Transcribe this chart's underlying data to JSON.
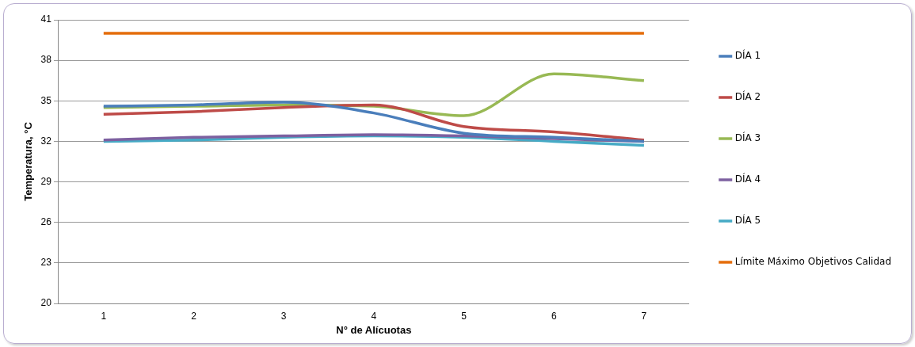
{
  "chart_data": {
    "type": "line",
    "xlabel": "N° de Alícuotas",
    "ylabel": "Temperatura, °C",
    "categories": [
      "1",
      "2",
      "3",
      "4",
      "5",
      "6",
      "7"
    ],
    "series": [
      {
        "name": "DÍA 1",
        "color": "#4a7ebb",
        "values": [
          34.6,
          34.7,
          34.9,
          34.1,
          32.6,
          32.3,
          32.0
        ]
      },
      {
        "name": "DÍA 2",
        "color": "#be4b48",
        "values": [
          34.0,
          34.2,
          34.5,
          34.7,
          33.1,
          32.7,
          32.1
        ]
      },
      {
        "name": "DÍA 3",
        "color": "#98b954",
        "values": [
          34.5,
          34.6,
          34.7,
          34.6,
          33.9,
          37.0,
          36.5
        ]
      },
      {
        "name": "DÍA 4",
        "color": "#7d60a0",
        "values": [
          32.1,
          32.3,
          32.4,
          32.5,
          32.4,
          32.2,
          32.0
        ]
      },
      {
        "name": "DÍA 5",
        "color": "#46aac5",
        "values": [
          32.0,
          32.1,
          32.3,
          32.4,
          32.3,
          32.0,
          31.7
        ]
      },
      {
        "name": "Límite Máximo Objetivos Calidad",
        "color": "#e46c0a",
        "values": [
          40,
          40,
          40,
          40,
          40,
          40,
          40
        ]
      }
    ],
    "ylim": [
      20,
      41
    ],
    "yticks": [
      20,
      23,
      26,
      29,
      32,
      35,
      38,
      41
    ],
    "grid": "y",
    "legend": "right",
    "marker": "none",
    "line_style": "solid"
  }
}
